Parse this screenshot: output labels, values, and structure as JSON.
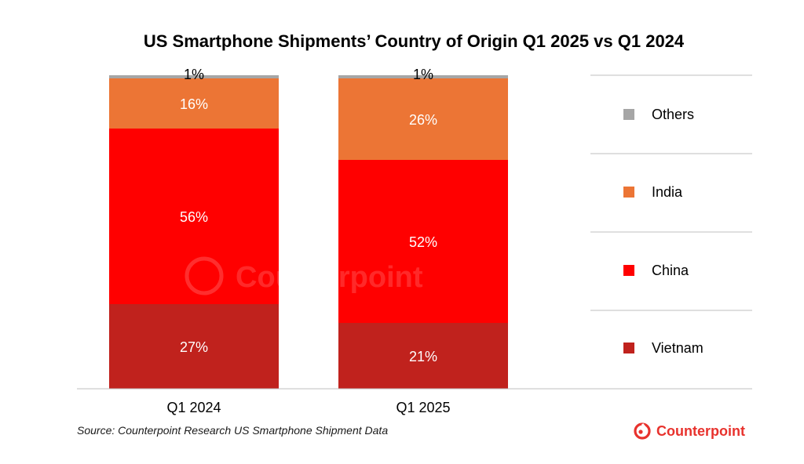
{
  "chart_data": {
    "type": "bar",
    "stacked": true,
    "normalized_percent": true,
    "title": "US Smartphone Shipments’ Country of Origin Q1 2025 vs Q1 2024",
    "categories": [
      "Q1 2024",
      "Q1 2025"
    ],
    "series": [
      {
        "name": "Vietnam",
        "values": [
          27,
          21
        ],
        "labels": [
          "27%",
          "21%"
        ],
        "color": "#c0221d"
      },
      {
        "name": "China",
        "values": [
          56,
          52
        ],
        "labels": [
          "56%",
          "52%"
        ],
        "color": "#ff0000"
      },
      {
        "name": "India",
        "values": [
          16,
          26
        ],
        "labels": [
          "16%",
          "26%"
        ],
        "color": "#ec7535"
      },
      {
        "name": "Others",
        "values": [
          1,
          1
        ],
        "labels": [
          "1%",
          "1%"
        ],
        "color": "#a6a6a6"
      }
    ],
    "ylim": [
      0,
      100
    ],
    "grid": false,
    "legend_position": "right",
    "legend_order": [
      "Others",
      "India",
      "China",
      "Vietnam"
    ]
  },
  "source": "Source: Counterpoint Research US Smartphone Shipment Data",
  "brand": {
    "name": "Counterpoint",
    "color": "#e8322d",
    "watermark": "Counterpoint"
  }
}
